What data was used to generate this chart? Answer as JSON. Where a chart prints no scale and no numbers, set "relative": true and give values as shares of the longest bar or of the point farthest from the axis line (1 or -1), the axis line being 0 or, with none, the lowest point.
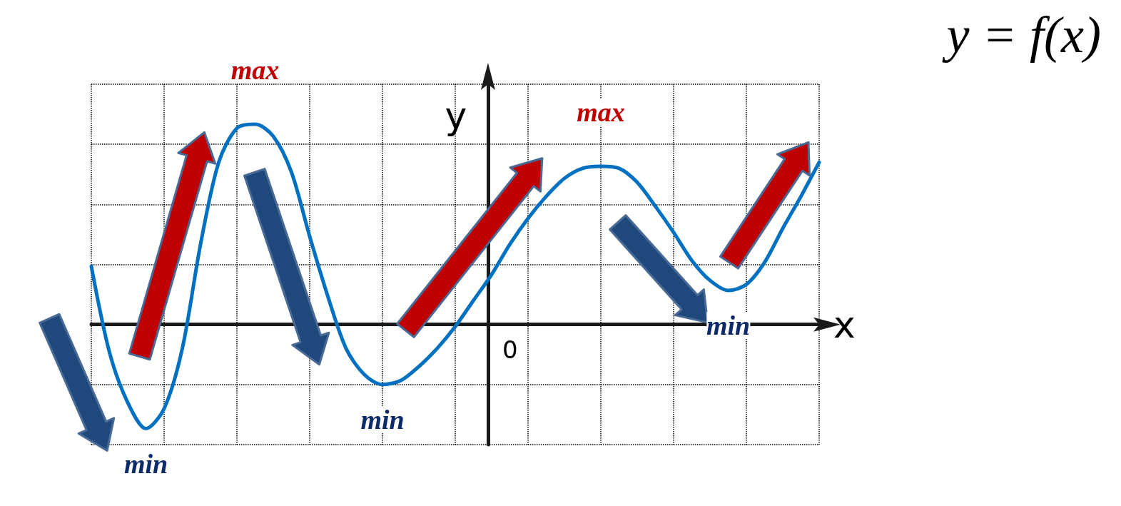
{
  "chart_data": {
    "type": "line",
    "title": "y = f(x)",
    "xlabel": "x",
    "ylabel": "y",
    "relative": true,
    "grid": true,
    "marker": "none",
    "line_style": "solid",
    "categories": [
      null,
      null,
      null,
      null,
      null,
      null,
      null,
      null,
      null,
      null,
      null,
      null,
      null,
      null,
      null,
      null,
      null,
      null,
      null,
      null,
      null,
      null,
      null,
      null,
      null,
      null,
      null,
      null,
      null,
      null,
      null,
      null,
      null,
      null,
      null,
      null,
      null,
      null,
      null,
      null,
      null
    ],
    "series": [
      {
        "color": "#0070c0",
        "values": [
          0.29,
          -0.14,
          -0.39,
          -0.52,
          -0.42,
          -0.12,
          0.4,
          0.81,
          0.98,
          1,
          0.94,
          0.76,
          0.44,
          0.14,
          -0.12,
          -0.25,
          -0.3,
          -0.28,
          -0.21,
          -0.12,
          -0.01,
          0.12,
          0.25,
          0.4,
          0.53,
          0.64,
          0.73,
          0.78,
          0.79,
          0.78,
          0.71,
          0.59,
          0.46,
          0.32,
          0.22,
          0.17,
          0.2,
          0.31,
          0.48,
          0.64,
          0.81
        ]
      }
    ],
    "annotations": [
      "0",
      {
        "text": "max",
        "y": 1
      },
      {
        "text": "max",
        "y": 0.79
      },
      {
        "text": "min",
        "y": -0.52
      },
      {
        "text": "min",
        "y": -0.3
      },
      {
        "text": "min",
        "y": 0.17
      }
    ]
  }
}
